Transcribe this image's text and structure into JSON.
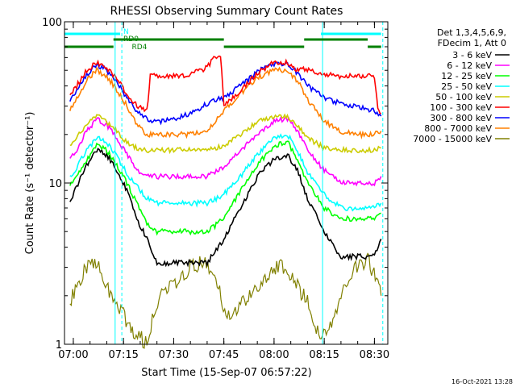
{
  "chart_data": {
    "type": "line",
    "title": "RHESSI Observing Summary Count Rates",
    "xlabel": "Start Time (15-Sep-07 06:57:22)",
    "ylabel": "Count Rate (s⁻¹ detector⁻¹)",
    "y_scale": "log",
    "ylim": [
      1,
      100
    ],
    "xlim": [
      "06:57:22",
      "08:34:00"
    ],
    "y_ticks": [
      "1",
      "10",
      "100"
    ],
    "x_ticks": [
      "07:00",
      "07:15",
      "07:30",
      "07:45",
      "08:00",
      "08:15",
      "08:30"
    ],
    "grid": false,
    "legend": {
      "placement": "right",
      "header": [
        "Det 1,3,4,5,6,9,",
        "FDecim 1, Att 0"
      ],
      "entries": [
        {
          "label": "3 - 6 keV",
          "color": "#000000"
        },
        {
          "label": "6 - 12 keV",
          "color": "#ff00ff"
        },
        {
          "label": "12 - 25 keV",
          "color": "#00ff00"
        },
        {
          "label": "25 - 50 keV",
          "color": "#00ffff"
        },
        {
          "label": "50 - 100 keV",
          "color": "#cccc00"
        },
        {
          "label": "100 - 300 keV",
          "color": "#ff0000"
        },
        {
          "label": "300 - 800 keV",
          "color": "#0000ff"
        },
        {
          "label": "800 - 7000 keV",
          "color": "#ff8000"
        },
        {
          "label": "7000 - 15000 keV",
          "color": "#808000"
        }
      ]
    },
    "series": [
      {
        "name": "3 - 6 keV",
        "color": "#000000",
        "x": [
          "06:59",
          "07:01",
          "07:04",
          "07:07",
          "07:10",
          "07:13",
          "07:16",
          "07:19",
          "07:22",
          "07:25",
          "07:30",
          "07:35",
          "07:40",
          "07:45",
          "07:50",
          "07:55",
          "08:00",
          "08:04",
          "08:07",
          "08:10",
          "08:15",
          "08:20",
          "08:25",
          "08:30",
          "08:32"
        ],
        "values": [
          7.5,
          9.5,
          13,
          16,
          15,
          12,
          9,
          6,
          4.5,
          3.2,
          3.2,
          3.2,
          3.2,
          4.5,
          7,
          11,
          14,
          15,
          12,
          8,
          5,
          3.5,
          3.5,
          3.5,
          4.5
        ]
      },
      {
        "name": "6 - 12 keV",
        "color": "#ff00ff",
        "x": [
          "06:59",
          "07:01",
          "07:04",
          "07:07",
          "07:10",
          "07:13",
          "07:16",
          "07:19",
          "07:22",
          "07:25",
          "07:30",
          "07:35",
          "07:40",
          "07:45",
          "07:50",
          "07:55",
          "08:00",
          "08:04",
          "08:07",
          "08:10",
          "08:15",
          "08:20",
          "08:25",
          "08:30",
          "08:32"
        ],
        "values": [
          14,
          16,
          21,
          25,
          23,
          19,
          15,
          12,
          11,
          11,
          11,
          11,
          11,
          12.5,
          16,
          20,
          24,
          25,
          21,
          16,
          12,
          10,
          10,
          10,
          11
        ]
      },
      {
        "name": "12 - 25 keV",
        "color": "#00ff00",
        "x": [
          "06:59",
          "07:01",
          "07:04",
          "07:07",
          "07:10",
          "07:13",
          "07:16",
          "07:19",
          "07:22",
          "07:25",
          "07:30",
          "07:35",
          "07:40",
          "07:45",
          "07:50",
          "07:55",
          "08:00",
          "08:04",
          "08:07",
          "08:10",
          "08:15",
          "08:20",
          "08:25",
          "08:30",
          "08:32"
        ],
        "values": [
          9.5,
          11,
          14,
          17,
          16,
          13,
          10,
          7.5,
          5.5,
          5,
          5,
          5,
          5,
          6,
          9,
          13,
          17,
          18,
          14,
          10,
          7,
          6,
          6,
          6,
          6.5
        ]
      },
      {
        "name": "25 - 50 keV",
        "color": "#00ffff",
        "x": [
          "06:59",
          "07:01",
          "07:04",
          "07:07",
          "07:10",
          "07:13",
          "07:16",
          "07:19",
          "07:22",
          "07:25",
          "07:30",
          "07:35",
          "07:40",
          "07:45",
          "07:50",
          "07:55",
          "08:00",
          "08:04",
          "08:07",
          "08:10",
          "08:15",
          "08:20",
          "08:25",
          "08:30",
          "08:32"
        ],
        "values": [
          11,
          12.5,
          16,
          19,
          18,
          14.5,
          11.5,
          9.5,
          8,
          7.5,
          7.5,
          7.5,
          7.5,
          8.5,
          11,
          15,
          19,
          20,
          16,
          11.5,
          8.5,
          7,
          7,
          7,
          7.5
        ]
      },
      {
        "name": "50 - 100 keV",
        "color": "#cccc00",
        "x": [
          "06:59",
          "07:01",
          "07:04",
          "07:07",
          "07:10",
          "07:13",
          "07:16",
          "07:19",
          "07:22",
          "07:25",
          "07:30",
          "07:35",
          "07:40",
          "07:45",
          "07:50",
          "07:55",
          "08:00",
          "08:04",
          "08:07",
          "08:10",
          "08:15",
          "08:20",
          "08:25",
          "08:30",
          "08:32"
        ],
        "values": [
          17,
          19,
          23,
          26,
          24,
          21,
          18,
          16.5,
          16,
          16,
          16,
          16,
          16,
          17,
          20,
          24,
          26,
          26,
          23,
          19,
          16.5,
          16,
          16,
          16,
          16.5
        ]
      },
      {
        "name": "100 - 300 keV",
        "color": "#ff0000",
        "x": [
          "06:59",
          "07:01",
          "07:04",
          "07:07",
          "07:10",
          "07:13",
          "07:16",
          "07:19",
          "07:22",
          "07:23",
          "07:30",
          "07:35",
          "07:40",
          "07:42",
          "07:44",
          "07:45",
          "07:50",
          "07:55",
          "08:00",
          "08:04",
          "08:07",
          "08:08",
          "08:15",
          "08:20",
          "08:25",
          "08:30",
          "08:31",
          "08:32"
        ],
        "values": [
          35,
          40,
          50,
          56,
          52,
          44,
          36,
          30,
          28,
          46,
          46,
          47,
          52,
          60,
          62,
          30,
          37,
          48,
          56,
          56,
          50,
          52,
          47,
          46,
          46,
          46,
          30,
          27
        ]
      },
      {
        "name": "300 - 800 keV",
        "color": "#0000ff",
        "x": [
          "06:59",
          "07:01",
          "07:04",
          "07:07",
          "07:10",
          "07:13",
          "07:16",
          "07:19",
          "07:22",
          "07:25",
          "07:30",
          "07:35",
          "07:40",
          "07:45",
          "07:50",
          "07:55",
          "08:00",
          "08:04",
          "08:07",
          "08:10",
          "08:15",
          "08:20",
          "08:25",
          "08:30",
          "08:32"
        ],
        "values": [
          32,
          38,
          47,
          54,
          50,
          42,
          34,
          28,
          25,
          24,
          25,
          27,
          31,
          34,
          40,
          49,
          55,
          55,
          48,
          40,
          34,
          31,
          30,
          28,
          26
        ]
      },
      {
        "name": "800 - 7000 keV",
        "color": "#ff8000",
        "x": [
          "06:59",
          "07:01",
          "07:04",
          "07:07",
          "07:10",
          "07:13",
          "07:16",
          "07:19",
          "07:22",
          "07:25",
          "07:30",
          "07:35",
          "07:40",
          "07:45",
          "07:50",
          "07:55",
          "08:00",
          "08:04",
          "08:07",
          "08:10",
          "08:15",
          "08:20",
          "08:25",
          "08:30",
          "08:32"
        ],
        "values": [
          28,
          33,
          43,
          50,
          46,
          38,
          30,
          23,
          20,
          20,
          20,
          20,
          21,
          28,
          36,
          45,
          50,
          50,
          43,
          33,
          24,
          21,
          20,
          20,
          21
        ]
      },
      {
        "name": "7000 - 15000 keV",
        "color": "#808000",
        "x": [
          "06:59",
          "07:01",
          "07:04",
          "07:06",
          "07:08",
          "07:10",
          "07:13",
          "07:15",
          "07:18",
          "07:22",
          "07:24",
          "07:26",
          "07:30",
          "07:35",
          "07:39",
          "07:43",
          "07:46",
          "07:50",
          "07:55",
          "08:00",
          "08:04",
          "08:07",
          "08:10",
          "08:13",
          "08:16",
          "08:20",
          "08:24",
          "08:28",
          "08:31",
          "08:32"
        ],
        "values": [
          1.8,
          2.3,
          3.0,
          3.3,
          3.0,
          2.3,
          1.8,
          1.5,
          1.2,
          1.0,
          1.5,
          2.0,
          2.3,
          3.0,
          3.3,
          2.3,
          1.5,
          1.8,
          2.3,
          3.0,
          3.0,
          2.3,
          1.8,
          1.2,
          1.2,
          2.0,
          3.0,
          3.3,
          2.5,
          2.0
        ]
      }
    ],
    "annotations": {
      "bars": [
        {
          "label": "N",
          "color": "#00ffff",
          "segments": [
            [
              "06:57:22",
              "07:14"
            ],
            [
              "08:14",
              "08:32"
            ]
          ]
        },
        {
          "label": "RD0",
          "color": "#008000",
          "segments": [
            [
              "07:12",
              "07:45"
            ],
            [
              "08:09",
              "08:28"
            ]
          ]
        },
        {
          "label": "RD4",
          "color": "#008000",
          "segments": [
            [
              "06:57:22",
              "07:12"
            ],
            [
              "07:45",
              "08:09"
            ],
            [
              "08:28",
              "08:32"
            ]
          ]
        }
      ],
      "vertical_lines_solid": [
        "06:57:22",
        "07:12:30",
        "08:14:30"
      ],
      "vertical_lines_dashed": [
        "07:14:30",
        "08:32:30"
      ]
    },
    "timestamp": "16-Oct-2021 13:28"
  }
}
